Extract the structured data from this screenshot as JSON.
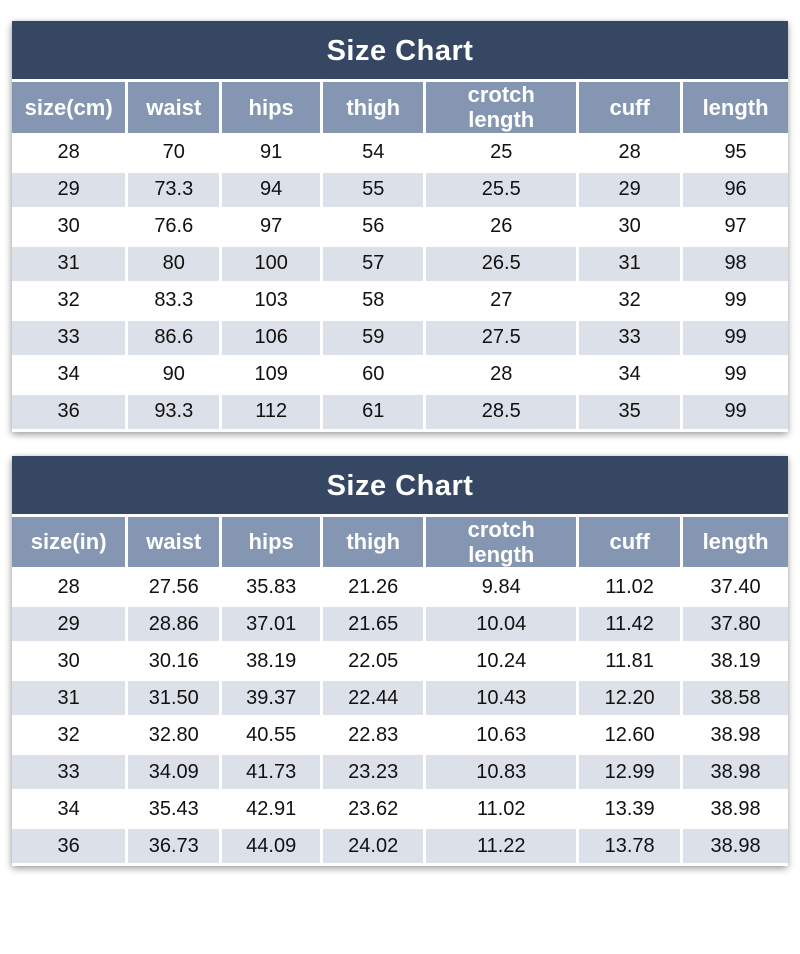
{
  "colors": {
    "title_band": "#354763",
    "header_row": "#8496b2",
    "row_alt": "#dce1e9",
    "row_base": "#ffffff",
    "title_text": "#ffffff",
    "cell_text": "#111111"
  },
  "chart_data": [
    {
      "type": "table",
      "title": "Size Chart",
      "unit": "cm",
      "columns": [
        "size(cm)",
        "waist",
        "hips",
        "thigh",
        "crotch length",
        "cuff",
        "length"
      ],
      "rows": [
        [
          "28",
          "70",
          "91",
          "54",
          "25",
          "28",
          "95"
        ],
        [
          "29",
          "73.3",
          "94",
          "55",
          "25.5",
          "29",
          "96"
        ],
        [
          "30",
          "76.6",
          "97",
          "56",
          "26",
          "30",
          "97"
        ],
        [
          "31",
          "80",
          "100",
          "57",
          "26.5",
          "31",
          "98"
        ],
        [
          "32",
          "83.3",
          "103",
          "58",
          "27",
          "32",
          "99"
        ],
        [
          "33",
          "86.6",
          "106",
          "59",
          "27.5",
          "33",
          "99"
        ],
        [
          "34",
          "90",
          "109",
          "60",
          "28",
          "34",
          "99"
        ],
        [
          "36",
          "93.3",
          "112",
          "61",
          "28.5",
          "35",
          "99"
        ]
      ]
    },
    {
      "type": "table",
      "title": "Size Chart",
      "unit": "in",
      "columns": [
        "size(in)",
        "waist",
        "hips",
        "thigh",
        "crotch length",
        "cuff",
        "length"
      ],
      "rows": [
        [
          "28",
          "27.56",
          "35.83",
          "21.26",
          "9.84",
          "11.02",
          "37.40"
        ],
        [
          "29",
          "28.86",
          "37.01",
          "21.65",
          "10.04",
          "11.42",
          "37.80"
        ],
        [
          "30",
          "30.16",
          "38.19",
          "22.05",
          "10.24",
          "11.81",
          "38.19"
        ],
        [
          "31",
          "31.50",
          "39.37",
          "22.44",
          "10.43",
          "12.20",
          "38.58"
        ],
        [
          "32",
          "32.80",
          "40.55",
          "22.83",
          "10.63",
          "12.60",
          "38.98"
        ],
        [
          "33",
          "34.09",
          "41.73",
          "23.23",
          "10.83",
          "12.99",
          "38.98"
        ],
        [
          "34",
          "35.43",
          "42.91",
          "23.62",
          "11.02",
          "13.39",
          "38.98"
        ],
        [
          "36",
          "36.73",
          "44.09",
          "24.02",
          "11.22",
          "13.78",
          "38.98"
        ]
      ]
    }
  ]
}
